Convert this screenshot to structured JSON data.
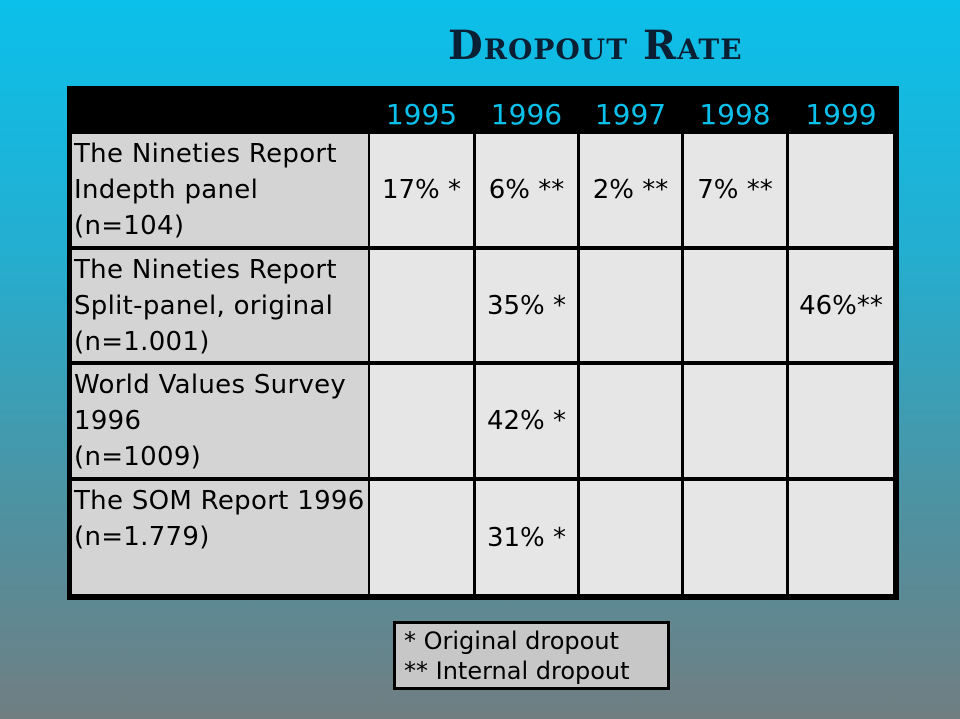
{
  "title": "Dropout Rate",
  "years": [
    "1995",
    "1996",
    "1997",
    "1998",
    "1999"
  ],
  "rows": [
    {
      "label": "The Nineties Report\nIndepth panel\n(n=104)",
      "values": [
        "17% *",
        "6% **",
        "2% **",
        "7% **",
        ""
      ]
    },
    {
      "label": "The Nineties Report\nSplit-panel, original\n(n=1.001)",
      "values": [
        "",
        "35% *",
        "",
        "",
        "46%**"
      ]
    },
    {
      "label": "World Values Survey\n1996\n(n=1009)",
      "values": [
        "",
        "42% *",
        "",
        "",
        ""
      ]
    },
    {
      "label": "The SOM Report 1996\n(n=1.779)",
      "values": [
        "",
        "31% *",
        "",
        "",
        ""
      ]
    }
  ],
  "legend": {
    "original": "*  Original dropout",
    "internal": "** Internal dropout"
  },
  "colors": {
    "year_text": "#0bc0ea",
    "label_cell": "#d4d4d4",
    "data_cell": "#e6e6e6",
    "legend_bg": "#c7c7c7"
  }
}
